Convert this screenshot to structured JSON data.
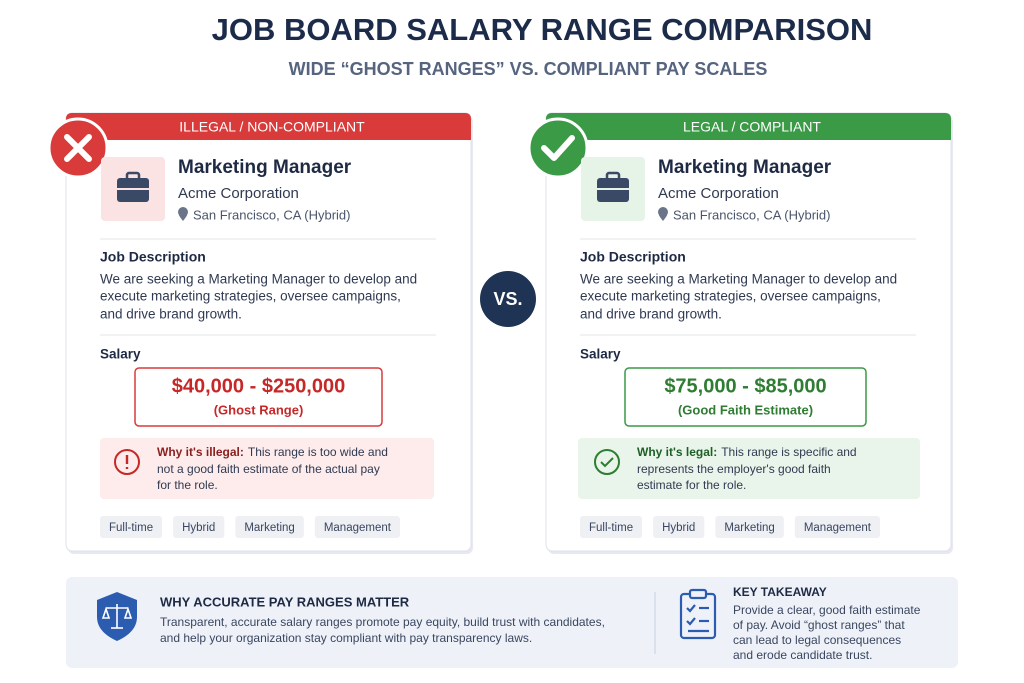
{
  "header": {
    "title": "JOB BOARD SALARY RANGE COMPARISON",
    "subtitle": "WIDE “GHOST RANGES” VS. COMPLIANT PAY SCALES"
  },
  "vs": "VS.",
  "cards": [
    {
      "status": "ILLEGAL / NON-COMPLIANT",
      "job_title": "Marketing Manager",
      "company": "Acme Corporation",
      "location": "San Francisco, CA (Hybrid)",
      "description_heading": "Job Description",
      "description": [
        "We are seeking a Marketing Manager to develop and",
        "execute marketing strategies, oversee campaigns,",
        "and drive brand growth."
      ],
      "salary_heading": "Salary",
      "salary_range": "$40,000 - $250,000",
      "salary_note": "(Ghost Range)",
      "note_label": "Why it's illegal:",
      "note_lines": [
        "This range is too wide and",
        "not a good faith estimate of the actual pay",
        "for the role."
      ],
      "tags": [
        "Full-time",
        "Hybrid",
        "Marketing",
        "Management"
      ]
    },
    {
      "status": "LEGAL / COMPLIANT",
      "job_title": "Marketing Manager",
      "company": "Acme Corporation",
      "location": "San Francisco, CA (Hybrid)",
      "description_heading": "Job Description",
      "description": [
        "We are seeking a Marketing Manager to develop and",
        "execute marketing strategies, oversee campaigns,",
        "and drive brand growth."
      ],
      "salary_heading": "Salary",
      "salary_range": "$75,000 - $85,000",
      "salary_note": "(Good Faith Estimate)",
      "note_label": "Why it's legal:",
      "note_lines": [
        "This range is specific and",
        "represents the employer's good faith",
        "estimate for the role."
      ],
      "tags": [
        "Full-time",
        "Hybrid",
        "Marketing",
        "Management"
      ]
    }
  ],
  "footer": {
    "heading": "WHY ACCURATE PAY RANGES MATTER",
    "lines": [
      "Transparent, accurate salary ranges promote pay equity, build trust with candidates,",
      "and help your organization stay compliant with pay transparency laws."
    ],
    "takeaway_heading": "KEY TAKEAWAY",
    "takeaway_lines": [
      "Provide a clear, good faith estimate",
      "of pay. Avoid “ghost ranges” that",
      "can lead to legal consequences",
      "and erode candidate trust."
    ]
  }
}
